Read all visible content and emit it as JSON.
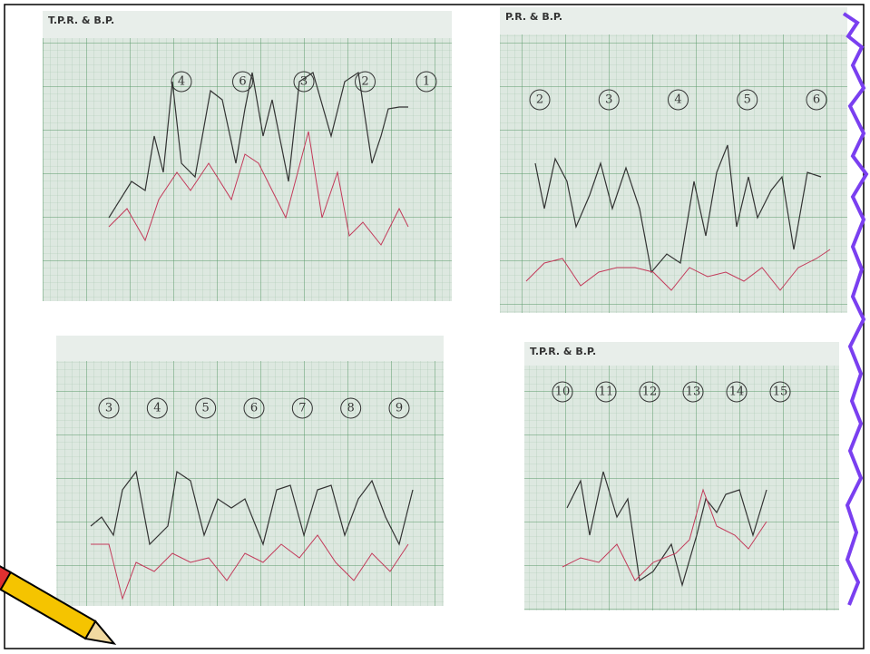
{
  "photos": [
    {
      "title": "T.P.R. & B.P.",
      "circled": [
        "4",
        "6",
        "3",
        "2",
        "1"
      ]
    },
    {
      "title": "P.R. & B.P.",
      "circled": [
        "2",
        "3",
        "4",
        "5",
        "6"
      ]
    },
    {
      "circled": [
        "3",
        "4",
        "5",
        "6",
        "7",
        "8",
        "9"
      ]
    },
    {
      "title": "T.P.R. & B.P.",
      "circled": [
        "10",
        "11",
        "12",
        "13",
        "14",
        "15"
      ]
    }
  ]
}
